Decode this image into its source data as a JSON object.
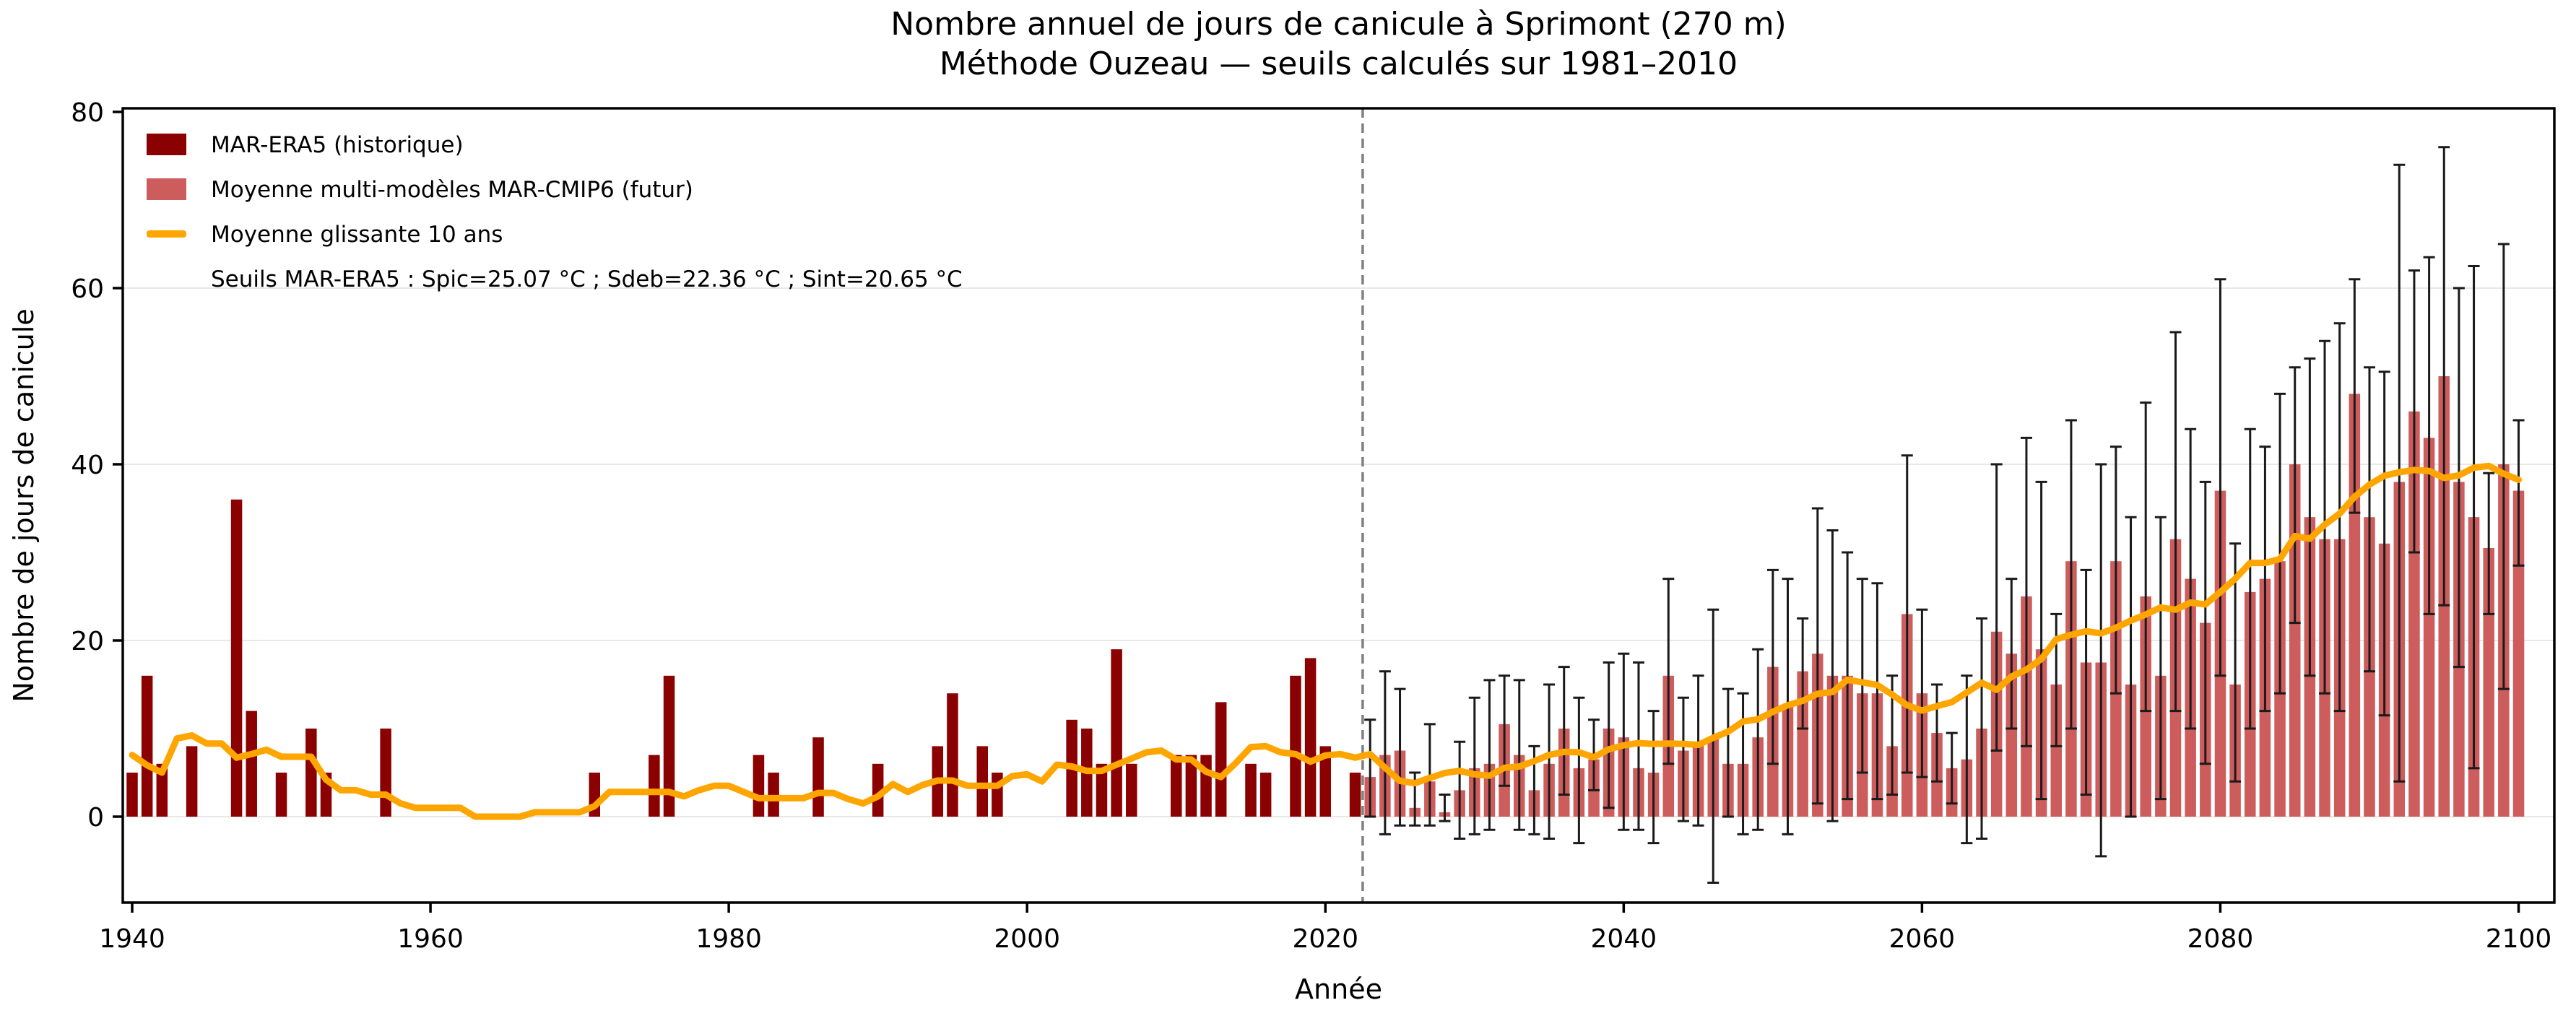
{
  "title": "Nombre annuel de jours de canicule à Sprimont (270 m)",
  "subtitle": "Méthode Ouzeau — seuils calculés sur 1981–2010",
  "colors": {
    "historical_bar": "#8B0000",
    "future_bar": "#CD5C5C",
    "rolling_mean_line": "#FFA500",
    "error_bar": "#1a1a1a",
    "split_line": "#7f7f7f",
    "grid": "#e8e8e8",
    "spine": "#000000"
  },
  "legend": {
    "items": [
      {
        "label": "MAR-ERA5 (historique)",
        "swatch": "rect",
        "color": "#8B0000"
      },
      {
        "label": "Moyenne multi-modèles MAR-CMIP6 (futur)",
        "swatch": "rect",
        "color": "#CD5C5C"
      },
      {
        "label": "Moyenne glissante 10 ans",
        "swatch": "line",
        "color": "#FFA500"
      },
      {
        "label": "Seuils MAR-ERA5 : Spic=25.07 °C ; Sdeb=22.36 °C ; Sint=20.65 °C",
        "swatch": "none",
        "color": ""
      }
    ]
  },
  "chart_data": {
    "type": "bar",
    "title": "Nombre annuel de jours de canicule à Sprimont (270 m)",
    "subtitle": "Méthode Ouzeau — seuils calculés sur 1981–2010",
    "xlabel": "Année",
    "ylabel": "Nombre de jours de canicule",
    "ylim": [
      -9.75,
      80
    ],
    "xlim": [
      1939.4,
      2102.4
    ],
    "yticks": [
      0,
      20,
      40,
      60,
      80
    ],
    "xticks": [
      1940,
      1960,
      1980,
      2000,
      2020,
      2040,
      2060,
      2080,
      2100
    ],
    "grid": "horizontal",
    "split_year": 2022.5,
    "rolling_mean_window": 10,
    "annotation": "Seuils MAR-ERA5 : Spic=25.07 °C ; Sdeb=22.36 °C ; Sint=20.65 °C",
    "series": [
      {
        "name": "MAR-ERA5 (historique)",
        "kind": "bar",
        "color": "#8B0000",
        "year_start": 1940,
        "values": [
          5,
          16,
          6,
          0,
          8,
          0,
          0,
          36,
          12,
          0,
          5,
          0,
          10,
          5,
          0,
          0,
          0,
          10,
          0,
          0,
          0,
          0,
          0,
          0,
          0,
          0,
          0,
          0,
          0,
          0,
          0,
          5,
          0,
          0,
          0,
          7,
          16,
          0,
          0,
          0,
          0,
          0,
          7,
          5,
          0,
          0,
          9,
          0,
          0,
          0,
          6,
          0,
          0,
          0,
          8,
          14,
          0,
          8,
          5,
          0,
          0,
          0,
          0,
          11,
          10,
          6,
          19,
          6,
          0,
          0,
          7,
          7,
          7,
          13,
          0,
          6,
          5,
          0,
          16,
          18,
          8,
          0,
          5
        ]
      },
      {
        "name": "Moyenne multi-modèles MAR-CMIP6 (futur)",
        "kind": "bar-with-errorbars",
        "color": "#CD5C5C",
        "year_start": 2023,
        "values": [
          4.5,
          7,
          7.5,
          1,
          4,
          0.5,
          3,
          5.5,
          6,
          10.5,
          7,
          3,
          6,
          10,
          5.5,
          6.5,
          10,
          9,
          5.5,
          5,
          16,
          7.5,
          8.5,
          9,
          6,
          6,
          9,
          17,
          12.5,
          16.5,
          18.5,
          16,
          16,
          14,
          14,
          8,
          23,
          14,
          9.5,
          5.5,
          6.5,
          10,
          21,
          18.5,
          25,
          19,
          15,
          29,
          17.5,
          17.5,
          29,
          15,
          25,
          16,
          31.5,
          27,
          22,
          37,
          15,
          25.5,
          27,
          29,
          40,
          34,
          31.5,
          31.5,
          48,
          34,
          31,
          38,
          46,
          43,
          50,
          38,
          34,
          30.5,
          40,
          37
        ],
        "err_lo": [
          0,
          -2,
          -1,
          -1,
          -1,
          -0.5,
          -2.5,
          -2,
          -1.5,
          3.5,
          -1.5,
          -2,
          -2.5,
          2.5,
          -3,
          3,
          1,
          -1.5,
          -1.5,
          -3,
          6,
          -0.5,
          -1,
          -7.5,
          0,
          -2,
          -1.5,
          6,
          -2,
          10,
          1.5,
          -0.5,
          2,
          5,
          2,
          2.5,
          5,
          4.5,
          4,
          1.5,
          -3,
          -2.5,
          7.5,
          10,
          8,
          2,
          8,
          10,
          2.5,
          -4.5,
          14,
          0,
          12,
          2,
          12,
          10,
          6,
          16,
          4,
          10,
          12,
          14,
          22,
          16,
          14,
          12,
          34.5,
          16.5,
          11.5,
          4,
          30,
          23,
          24,
          17,
          5.5,
          23,
          14.5,
          28.5
        ],
        "err_hi": [
          11,
          16.5,
          14.5,
          5,
          10.5,
          2.5,
          8.5,
          13.5,
          15.5,
          16,
          15.5,
          8,
          15,
          17,
          13.5,
          11,
          17.5,
          18.5,
          17.5,
          12,
          27,
          13.5,
          16,
          23.5,
          14.5,
          14,
          19,
          28,
          27,
          22.5,
          35,
          32.5,
          30,
          27,
          26.5,
          16,
          41,
          23.5,
          15,
          9.5,
          16,
          22.5,
          40,
          27,
          43,
          38,
          23,
          45,
          28,
          40,
          42,
          34,
          47,
          34,
          55,
          44,
          38,
          61,
          31,
          44,
          42,
          48,
          51,
          52,
          54,
          56,
          61,
          51,
          50.5,
          74,
          62,
          63.5,
          76,
          60,
          62.5,
          39,
          65,
          45
        ]
      },
      {
        "name": "Moyenne glissante 10 ans",
        "kind": "line",
        "color": "#FFA500"
      }
    ]
  }
}
